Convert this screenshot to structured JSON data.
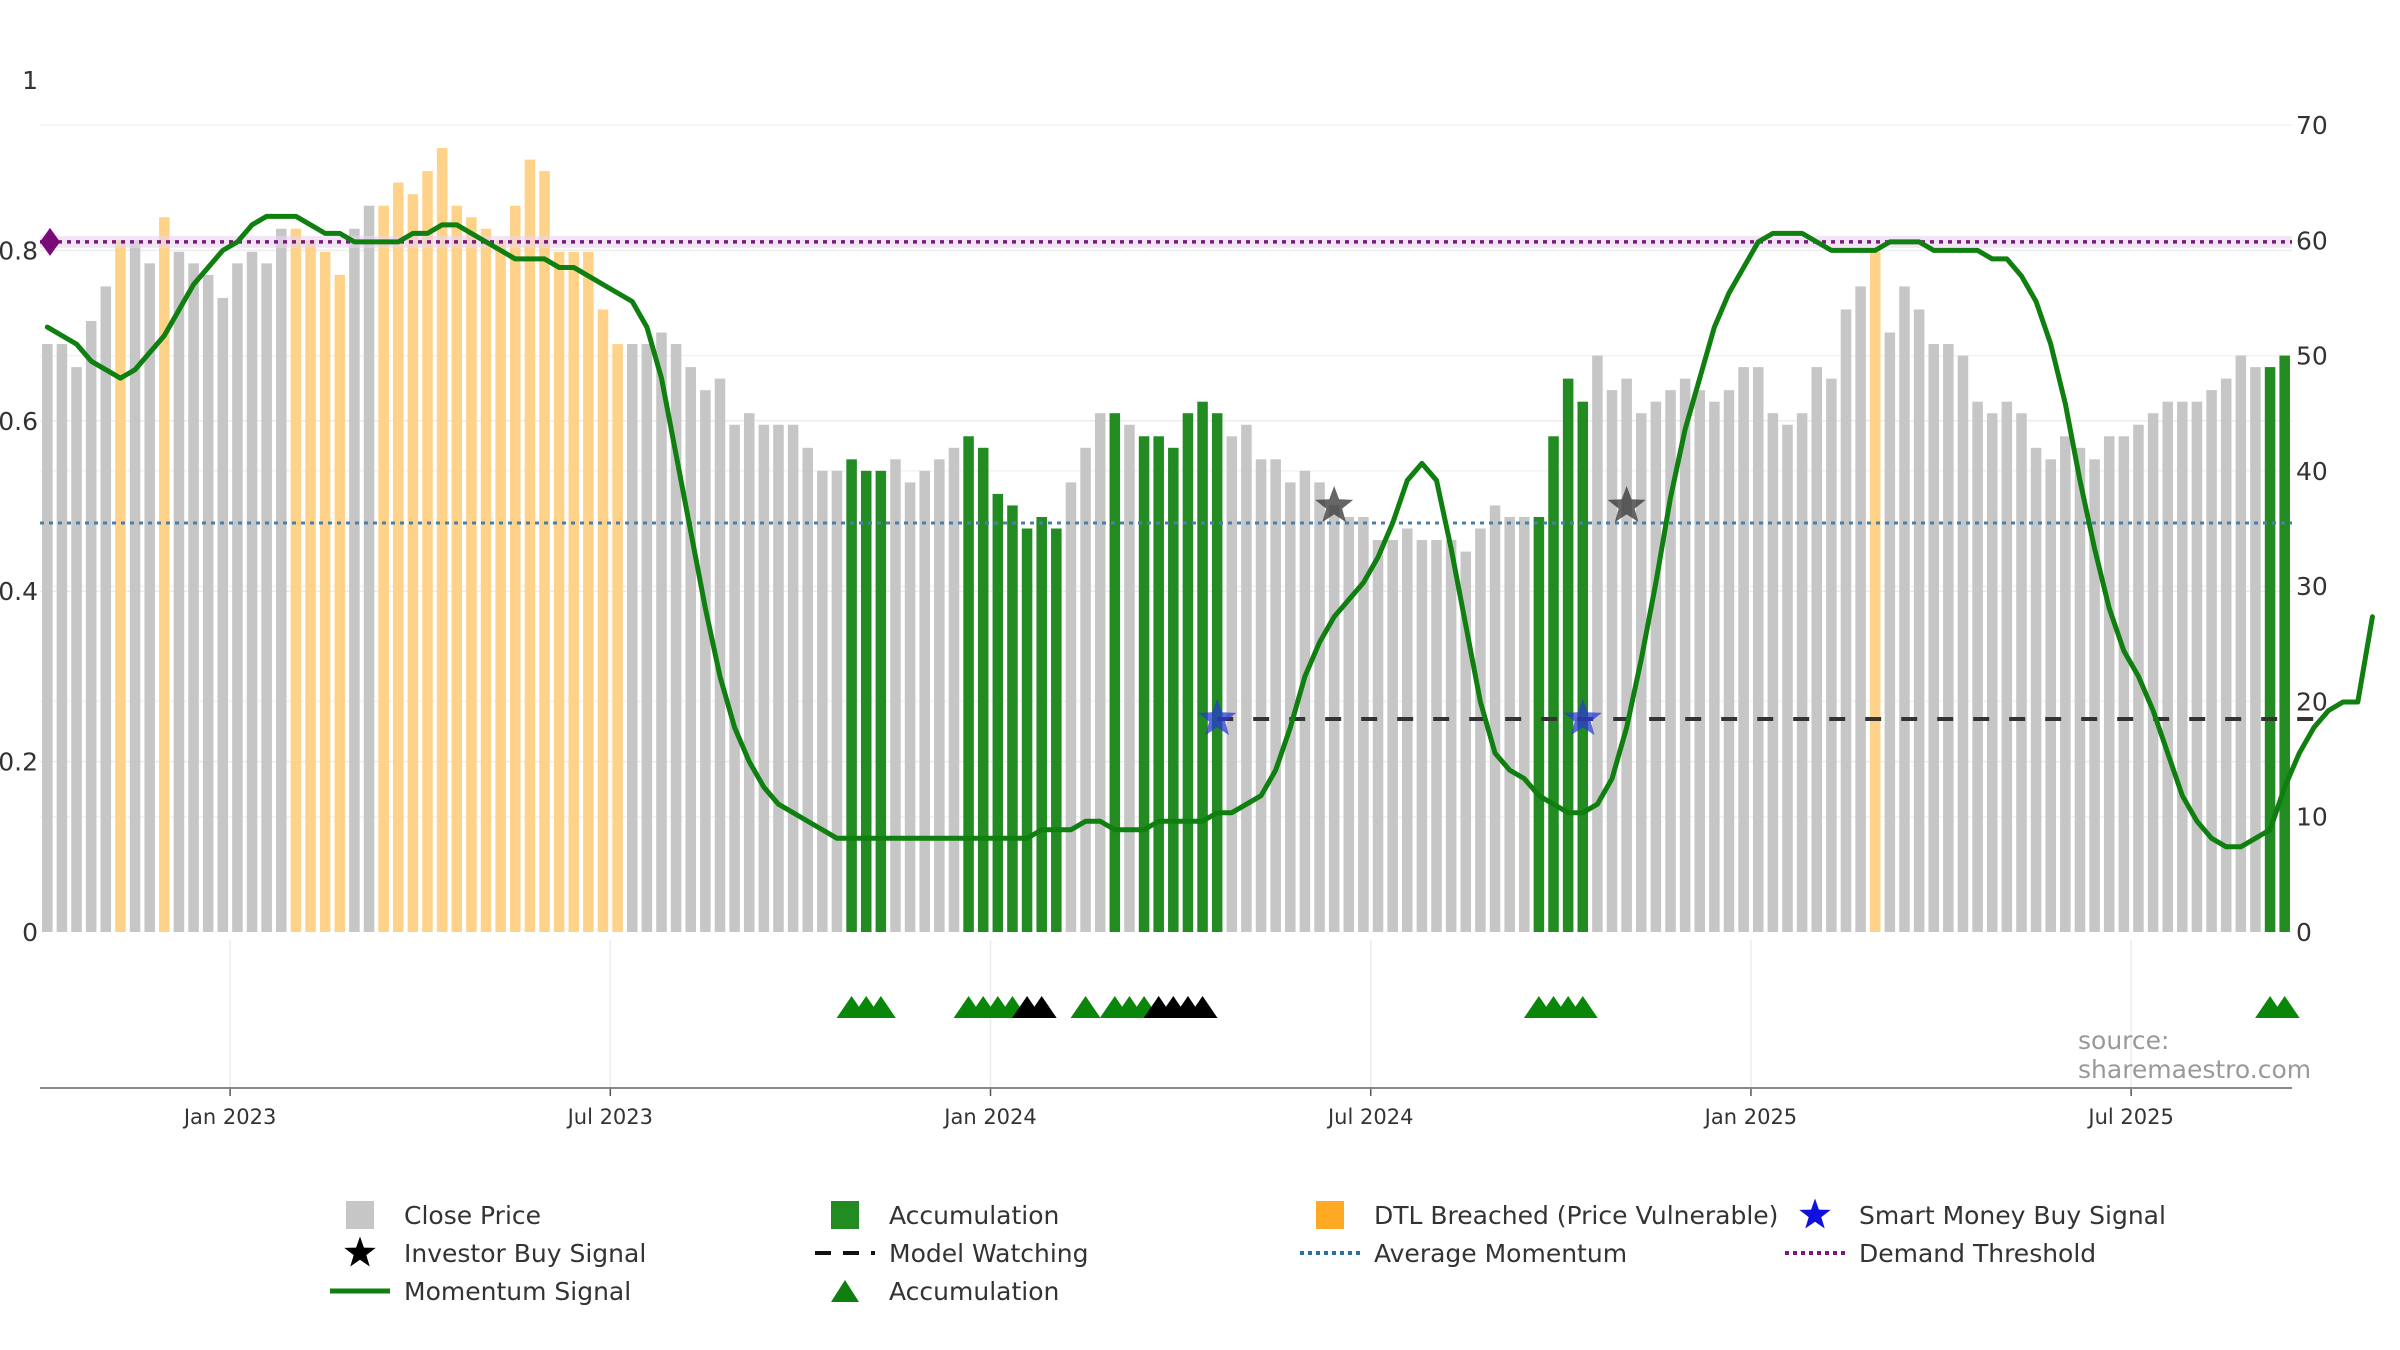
{
  "chart_data": {
    "type": "bar",
    "x_tick_labels": [
      "Jan 2023",
      "Jul 2023",
      "Jan 2024",
      "Jul 2024",
      "Jan 2025",
      "Jul 2025"
    ],
    "left_axis": {
      "range": [
        0,
        1
      ],
      "tick_labels": [
        "0",
        "0.2",
        "0.4",
        "0.6",
        "0.8",
        "1"
      ]
    },
    "right_axis": {
      "range": [
        0,
        70
      ],
      "tick_labels": [
        "0",
        "10",
        "20",
        "30",
        "40",
        "50",
        "60",
        "70"
      ]
    },
    "close_price": [
      51,
      51,
      49,
      53,
      56,
      60,
      60,
      58,
      62,
      59,
      58,
      57,
      55,
      58,
      59,
      58,
      61,
      61,
      60,
      59,
      57,
      61,
      63,
      63,
      65,
      64,
      66,
      68,
      63,
      62,
      61,
      60,
      63,
      67,
      66,
      59,
      59,
      59,
      54,
      51,
      51,
      51,
      52,
      51,
      49,
      47,
      48,
      44,
      45,
      44,
      44,
      44,
      42,
      40,
      40,
      41,
      40,
      40,
      41,
      39,
      40,
      41,
      42,
      43,
      42,
      38,
      37,
      35,
      36,
      35,
      39,
      42,
      45,
      45,
      44,
      43,
      43,
      42,
      45,
      46,
      45,
      43,
      44,
      41,
      41,
      39,
      40,
      39,
      37,
      36,
      36,
      34,
      34,
      35,
      34,
      34,
      34,
      33,
      35,
      37,
      36,
      36,
      36,
      43,
      48,
      46,
      50,
      47,
      48,
      45,
      46,
      47,
      48,
      47,
      46,
      47,
      49,
      49,
      45,
      44,
      45,
      49,
      48,
      54,
      56,
      59,
      52,
      56,
      54,
      51,
      51,
      50,
      46,
      45,
      46,
      45,
      42,
      41,
      43,
      42,
      41,
      43,
      43,
      44,
      45,
      46,
      46,
      46,
      47,
      48,
      50,
      49,
      49,
      50
    ],
    "accumulation_periods": [
      [
        55,
        57
      ],
      [
        63,
        69
      ],
      [
        73,
        73
      ],
      [
        75,
        80
      ],
      [
        102,
        105
      ],
      [
        152,
        153
      ]
    ],
    "dtl_breached_periods": [
      [
        5,
        5
      ],
      [
        8,
        8
      ],
      [
        17,
        20
      ],
      [
        23,
        29
      ],
      [
        30,
        39
      ],
      [
        125,
        125
      ]
    ],
    "momentum_signal": [
      0.71,
      0.7,
      0.69,
      0.67,
      0.66,
      0.65,
      0.66,
      0.68,
      0.7,
      0.73,
      0.76,
      0.78,
      0.8,
      0.81,
      0.83,
      0.84,
      0.84,
      0.84,
      0.83,
      0.82,
      0.82,
      0.81,
      0.81,
      0.81,
      0.81,
      0.82,
      0.82,
      0.83,
      0.83,
      0.82,
      0.81,
      0.8,
      0.79,
      0.79,
      0.79,
      0.78,
      0.78,
      0.77,
      0.76,
      0.75,
      0.74,
      0.71,
      0.65,
      0.56,
      0.47,
      0.38,
      0.3,
      0.24,
      0.2,
      0.17,
      0.15,
      0.14,
      0.13,
      0.12,
      0.11,
      0.11,
      0.11,
      0.11,
      0.11,
      0.11,
      0.11,
      0.11,
      0.11,
      0.11,
      0.11,
      0.11,
      0.11,
      0.11,
      0.12,
      0.12,
      0.12,
      0.13,
      0.13,
      0.12,
      0.12,
      0.12,
      0.13,
      0.13,
      0.13,
      0.13,
      0.14,
      0.14,
      0.15,
      0.16,
      0.19,
      0.24,
      0.3,
      0.34,
      0.37,
      0.39,
      0.41,
      0.44,
      0.48,
      0.53,
      0.55,
      0.53,
      0.45,
      0.36,
      0.27,
      0.21,
      0.19,
      0.18,
      0.16,
      0.15,
      0.14,
      0.14,
      0.15,
      0.18,
      0.24,
      0.32,
      0.41,
      0.51,
      0.59,
      0.65,
      0.71,
      0.75,
      0.78,
      0.81,
      0.82,
      0.82,
      0.82,
      0.81,
      0.8,
      0.8,
      0.8,
      0.8,
      0.81,
      0.81,
      0.81,
      0.8,
      0.8,
      0.8,
      0.8,
      0.79,
      0.79,
      0.77,
      0.74,
      0.69,
      0.62,
      0.53,
      0.45,
      0.38,
      0.33,
      0.3,
      0.26,
      0.21,
      0.16,
      0.13,
      0.11,
      0.1,
      0.1,
      0.11,
      0.12,
      0.17,
      0.21,
      0.24,
      0.26,
      0.27,
      0.27,
      0.37
    ],
    "demand_threshold": 0.81,
    "average_momentum": 0.48,
    "model_watching": {
      "from_index": 80,
      "to_index": 155,
      "value": 0.25
    },
    "smart_money_buy_signals": [
      {
        "index": 80,
        "value": 0.25
      },
      {
        "index": 105,
        "value": 0.25
      }
    ],
    "investor_buy_signals": [
      {
        "index": 88,
        "value": 0.5
      },
      {
        "index": 108,
        "value": 0.5
      }
    ],
    "accumulation_markers": [
      {
        "index": 55,
        "color": "green"
      },
      {
        "index": 56,
        "color": "green"
      },
      {
        "index": 57,
        "color": "green"
      },
      {
        "index": 63,
        "color": "green"
      },
      {
        "index": 64,
        "color": "green"
      },
      {
        "index": 65,
        "color": "green"
      },
      {
        "index": 66,
        "color": "green"
      },
      {
        "index": 67,
        "color": "black"
      },
      {
        "index": 68,
        "color": "black"
      },
      {
        "index": 71,
        "color": "green"
      },
      {
        "index": 73,
        "color": "green"
      },
      {
        "index": 74,
        "color": "green"
      },
      {
        "index": 75,
        "color": "green"
      },
      {
        "index": 76,
        "color": "black"
      },
      {
        "index": 77,
        "color": "black"
      },
      {
        "index": 78,
        "color": "black"
      },
      {
        "index": 79,
        "color": "black"
      },
      {
        "index": 102,
        "color": "green"
      },
      {
        "index": 103,
        "color": "green"
      },
      {
        "index": 104,
        "color": "green"
      },
      {
        "index": 105,
        "color": "green"
      },
      {
        "index": 152,
        "color": "green"
      },
      {
        "index": 153,
        "color": "green"
      }
    ],
    "legend": [
      {
        "label": "Close Price",
        "symbol": "gray-square"
      },
      {
        "label": "Accumulation",
        "symbol": "green-square"
      },
      {
        "label": "DTL Breached (Price Vulnerable)",
        "symbol": "orange-square"
      },
      {
        "label": "Smart Money Buy Signal",
        "symbol": "blue-star"
      },
      {
        "label": "Investor Buy Signal",
        "symbol": "black-star"
      },
      {
        "label": "Model Watching",
        "symbol": "black-dash"
      },
      {
        "label": "Average Momentum",
        "symbol": "blue-dotted"
      },
      {
        "label": "Demand Threshold",
        "symbol": "purple-dotted"
      },
      {
        "label": "Momentum Signal",
        "symbol": "green-line"
      },
      {
        "label": "Accumulation",
        "symbol": "green-triangle"
      }
    ],
    "colors": {
      "close_price": "#c6c6c6",
      "accumulation": "#228b22",
      "dtl_breached": "#ffd28a",
      "momentum": "#0f7f0f",
      "demand_threshold": "#7a1a7a",
      "average_momentum": "#4a7fa8",
      "smart_money": "#2a3ad1",
      "investor": "#333333",
      "model_watching": "#333333"
    }
  },
  "source_text": "source: sharemaestro.com"
}
